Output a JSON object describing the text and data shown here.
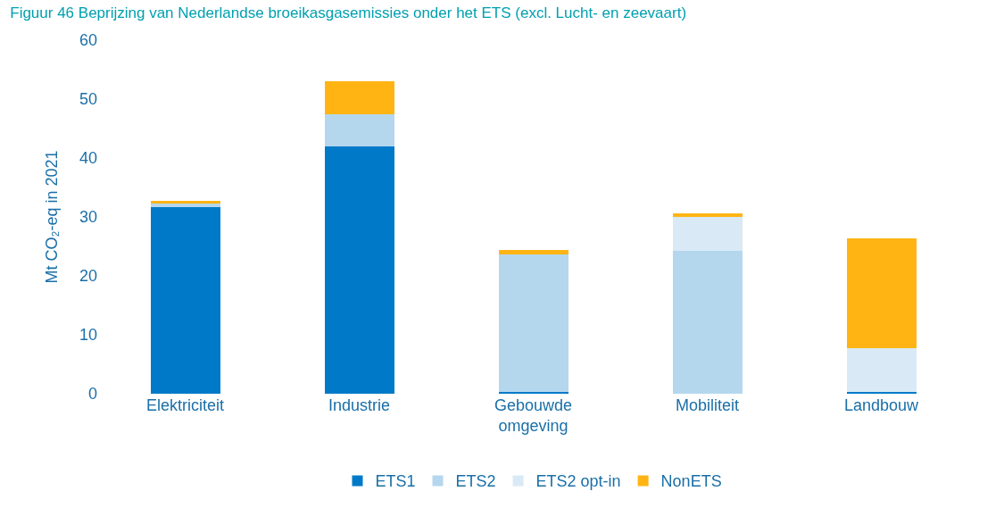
{
  "chart_data": {
    "type": "bar",
    "stacked": true,
    "title": "Figuur 46 Beprijzing van Nederlandse broeikasgasemissies onder het ETS (excl. Lucht- en zeevaart)",
    "ylabel": "Mt CO₂-eq in 2021",
    "categories": [
      "Elektriciteit",
      "Industrie",
      "Gebouwde omgeving",
      "Mobiliteit",
      "Landbouw"
    ],
    "series": [
      {
        "name": "ETS1",
        "color": "#0079c8",
        "values": [
          31.6,
          42.0,
          0.3,
          0,
          0.3
        ]
      },
      {
        "name": "ETS2",
        "color": "#b4d7ee",
        "values": [
          0.6,
          5.4,
          23.4,
          24.2,
          0
        ]
      },
      {
        "name": "ETS2 opt-in",
        "color": "#d9eaf6",
        "values": [
          0,
          0,
          0,
          5.8,
          7.5
        ]
      },
      {
        "name": "NonETS",
        "color": "#ffb414",
        "values": [
          0.5,
          5.6,
          0.7,
          0.6,
          18.5
        ]
      }
    ],
    "ylim": [
      0,
      60
    ],
    "yticks": [
      0,
      10,
      20,
      30,
      40,
      50,
      60
    ],
    "grid": false,
    "legend": "bottom"
  }
}
